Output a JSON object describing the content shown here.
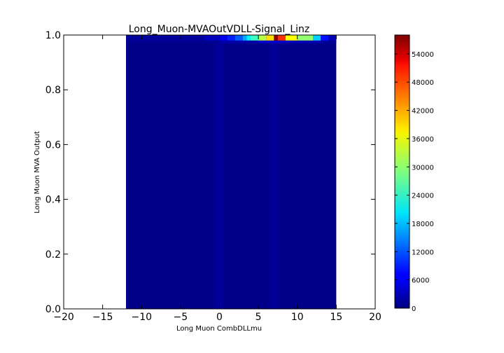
{
  "chart_data": {
    "type": "heatmap",
    "title": "Long_Muon-MVAOutVDLL-Signal_Linz",
    "xlabel": "Long Muon CombDLLmu",
    "ylabel": "Long Muon MVA Output",
    "xlim": [
      -20,
      20
    ],
    "ylim": [
      0.0,
      1.0
    ],
    "x_ticks": [
      "−20",
      "−15",
      "−10",
      "−5",
      "0",
      "5",
      "10",
      "15",
      "20"
    ],
    "y_ticks": [
      "0.0",
      "0.2",
      "0.4",
      "0.6",
      "0.8",
      "1.0"
    ],
    "colorbar": {
      "colormap": "jet",
      "range": [
        0,
        58000
      ],
      "ticks": [
        "0",
        "6000",
        "12000",
        "18000",
        "24000",
        "30000",
        "36000",
        "42000",
        "48000",
        "54000"
      ]
    },
    "data_extent": {
      "x": [
        -12,
        15
      ],
      "y": [
        0.0,
        1.0
      ]
    },
    "background_level": 500,
    "top_row": {
      "y_range": [
        0.98,
        1.0
      ],
      "bins": [
        {
          "x": [
            -12,
            -2
          ],
          "value": 1500
        },
        {
          "x": [
            -2,
            0
          ],
          "value": 3500
        },
        {
          "x": [
            0,
            1
          ],
          "value": 6000
        },
        {
          "x": [
            1,
            2
          ],
          "value": 9000
        },
        {
          "x": [
            2,
            3
          ],
          "value": 12500
        },
        {
          "x": [
            3,
            3.5
          ],
          "value": 17000
        },
        {
          "x": [
            3.5,
            4
          ],
          "value": 21000
        },
        {
          "x": [
            4,
            5
          ],
          "value": 25000
        },
        {
          "x": [
            5,
            6
          ],
          "value": 32000
        },
        {
          "x": [
            6,
            7
          ],
          "value": 38000
        },
        {
          "x": [
            7,
            7.5
          ],
          "value": 57000
        },
        {
          "x": [
            7.5,
            8.5
          ],
          "value": 48000
        },
        {
          "x": [
            8.5,
            10
          ],
          "value": 36000
        },
        {
          "x": [
            10,
            12
          ],
          "value": 30000
        },
        {
          "x": [
            12,
            13
          ],
          "value": 19000
        },
        {
          "x": [
            13,
            14
          ],
          "value": 8000
        },
        {
          "x": [
            14,
            15
          ],
          "value": 3000
        }
      ]
    },
    "second_row": {
      "y_range": [
        0.97,
        0.98
      ],
      "bins": [
        {
          "x": [
            -12,
            0
          ],
          "value": 1000
        },
        {
          "x": [
            0,
            5
          ],
          "value": 2500
        },
        {
          "x": [
            5,
            9
          ],
          "value": 4000
        },
        {
          "x": [
            9,
            13
          ],
          "value": 3000
        },
        {
          "x": [
            13,
            15
          ],
          "value": 1500
        }
      ]
    },
    "streaks": [
      {
        "x": [
          -0.5,
          0.5
        ],
        "value": 1400
      },
      {
        "x": [
          6.5,
          7.5
        ],
        "value": 1200
      }
    ]
  }
}
